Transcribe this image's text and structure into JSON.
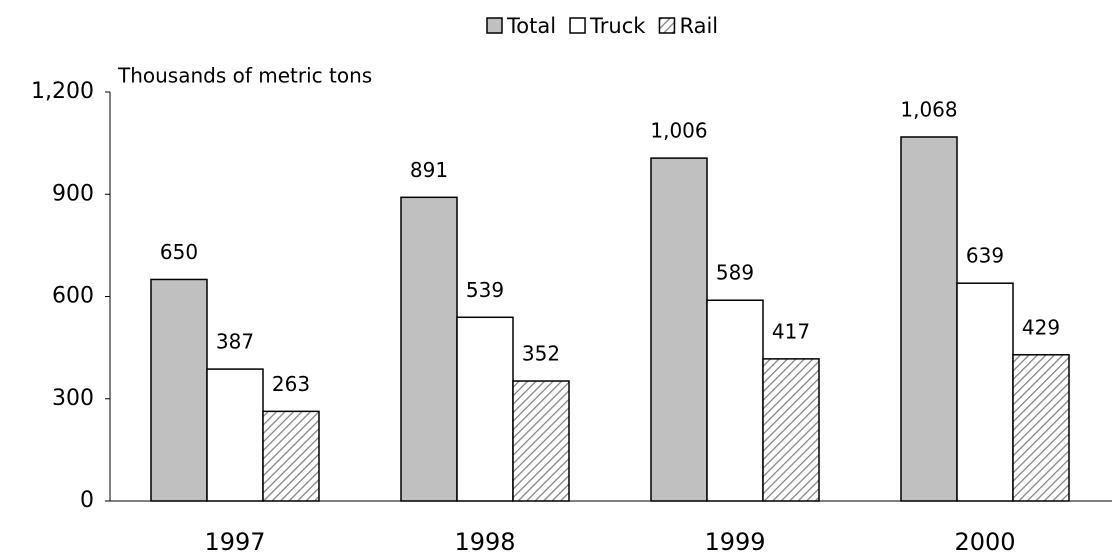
{
  "chart_data": {
    "type": "bar",
    "y_axis_label": "Thousands of metric tons",
    "categories": [
      "1997",
      "1998",
      "1999",
      "2000"
    ],
    "series": [
      {
        "name": "Total",
        "color": "#c0c0c0",
        "values": [
          650,
          891,
          1006,
          1068
        ],
        "value_labels": [
          "650",
          "891",
          "1,006",
          "1,068"
        ]
      },
      {
        "name": "Truck",
        "color": "#ffffff",
        "values": [
          387,
          539,
          589,
          639
        ]
      },
      {
        "name": "Rail",
        "color": "#808080",
        "hatch": true,
        "values": [
          263,
          352,
          417,
          429
        ]
      }
    ],
    "ylim": [
      0,
      1200
    ],
    "yticks": [
      0,
      300,
      600,
      900,
      {
        "value": 1200,
        "label": "1,200"
      }
    ],
    "legend": "top"
  }
}
